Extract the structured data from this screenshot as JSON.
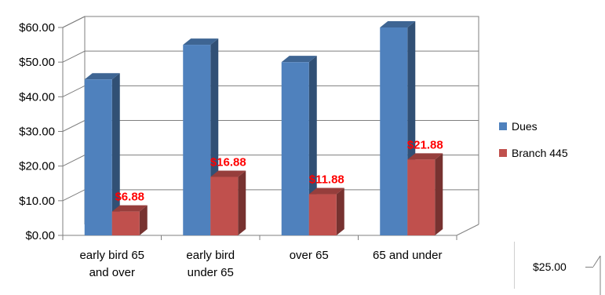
{
  "chart_data": {
    "type": "bar",
    "categories": [
      [
        "early bird 65",
        "and over"
      ],
      [
        "early bird",
        "under 65"
      ],
      [
        "over 65"
      ],
      [
        "65 and under"
      ]
    ],
    "series": [
      {
        "name": "Dues",
        "values": [
          45.0,
          55.0,
          50.0,
          60.0
        ],
        "color": "#4F81BD",
        "show_labels": false
      },
      {
        "name": "Branch 445",
        "values": [
          6.88,
          16.88,
          11.88,
          21.88
        ],
        "color": "#C0504D",
        "show_labels": true
      }
    ],
    "data_labels": [
      "$6.88",
      "$16.88",
      "$11.88",
      "$21.88"
    ],
    "y_ticks": [
      "$0.00",
      "$10.00",
      "$20.00",
      "$30.00",
      "$40.00",
      "$50.00",
      "$60.00"
    ],
    "ylim": [
      0,
      60
    ],
    "y_step": 10,
    "grid": true,
    "three_d": true,
    "legend_position": "right",
    "label_color": "#FF0000"
  },
  "inset": {
    "tick_label": "$25.00"
  }
}
